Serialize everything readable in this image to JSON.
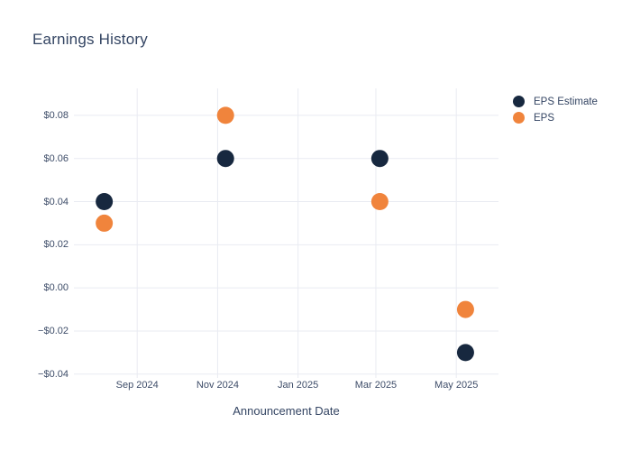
{
  "title": "Earnings History",
  "xaxis_title": "Announcement Date",
  "legend": {
    "items": [
      {
        "label": "EPS Estimate"
      },
      {
        "label": "EPS"
      }
    ]
  },
  "colors": {
    "eps_estimate": "#17283f",
    "eps": "#f0843c",
    "grid": "#e9ebf2",
    "title_text": "#344563",
    "tick_text": "#3d4c68",
    "background": "#ffffff"
  },
  "chart_data": {
    "type": "scatter",
    "title": "Earnings History",
    "xlabel": "Announcement Date",
    "ylabel": "",
    "grid": true,
    "legend_position": "right",
    "marker_diameter_px": 19,
    "x_range": [
      "2024-07-15",
      "2025-06-02"
    ],
    "y_range": [
      -0.0405,
      0.0925
    ],
    "x_ticks": [
      {
        "label": "Sep 2024",
        "date": "2024-09-01"
      },
      {
        "label": "Nov 2024",
        "date": "2024-11-01"
      },
      {
        "label": "Jan 2025",
        "date": "2025-01-01"
      },
      {
        "label": "Mar 2025",
        "date": "2025-03-01"
      },
      {
        "label": "May 2025",
        "date": "2025-05-01"
      }
    ],
    "y_ticks": [
      {
        "label": "$0.08",
        "value": 0.08
      },
      {
        "label": "$0.06",
        "value": 0.06
      },
      {
        "label": "$0.04",
        "value": 0.04
      },
      {
        "label": "$0.02",
        "value": 0.02
      },
      {
        "label": "$0.00",
        "value": 0.0
      },
      {
        "label": "−$0.02",
        "value": -0.02
      },
      {
        "label": "−$0.04",
        "value": -0.04
      }
    ],
    "series": [
      {
        "name": "EPS Estimate",
        "color": "#17283f",
        "points": [
          {
            "x": "2024-08-07",
            "y": 0.04
          },
          {
            "x": "2024-11-07",
            "y": 0.06
          },
          {
            "x": "2025-03-04",
            "y": 0.06
          },
          {
            "x": "2025-05-08",
            "y": -0.03
          }
        ]
      },
      {
        "name": "EPS",
        "color": "#f0843c",
        "points": [
          {
            "x": "2024-08-07",
            "y": 0.03
          },
          {
            "x": "2024-11-07",
            "y": 0.08
          },
          {
            "x": "2025-03-04",
            "y": 0.04
          },
          {
            "x": "2025-05-08",
            "y": -0.01
          }
        ]
      }
    ]
  }
}
